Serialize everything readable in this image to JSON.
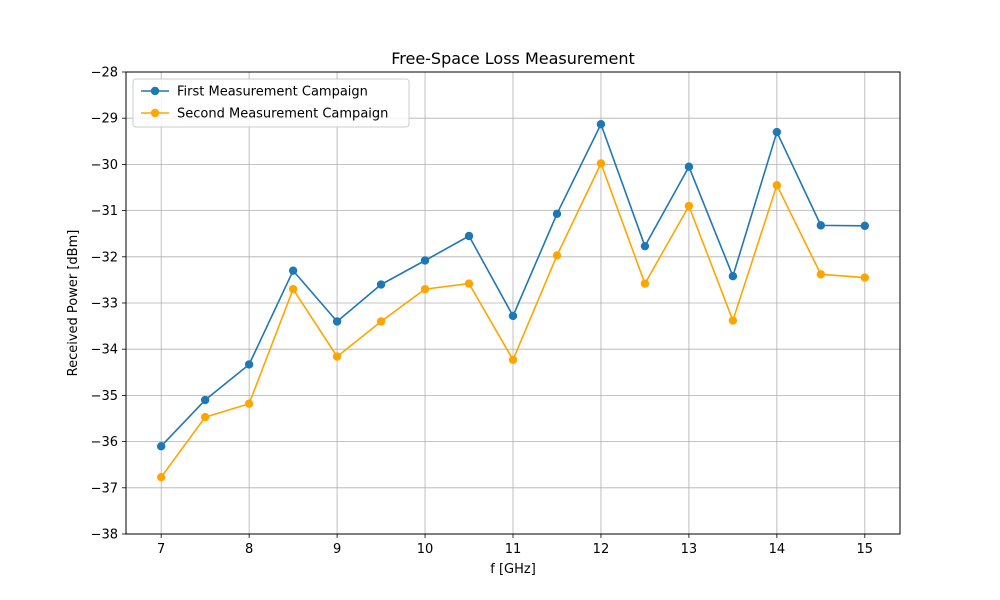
{
  "chart_data": {
    "type": "line",
    "title": "Free-Space Loss Measurement",
    "xlabel": "f [GHz]",
    "ylabel": "Received Power [dBm]",
    "xlim": [
      6.6,
      15.4
    ],
    "ylim": [
      -38,
      -28
    ],
    "xticks": [
      7,
      8,
      9,
      10,
      11,
      12,
      13,
      14,
      15
    ],
    "yticks": [
      -38,
      -37,
      -36,
      -35,
      -34,
      -33,
      -32,
      -31,
      -30,
      -29,
      -28
    ],
    "grid": true,
    "legend_position": "upper-left",
    "x": [
      7,
      7.5,
      8,
      8.5,
      9,
      9.5,
      10,
      10.5,
      11,
      11.5,
      12,
      12.5,
      13,
      13.5,
      14,
      14.5,
      15
    ],
    "series": [
      {
        "name": "First Measurement Campaign",
        "color": "#1f77b4",
        "values": [
          -36.1,
          -35.1,
          -34.33,
          -32.3,
          -33.4,
          -32.6,
          -32.08,
          -31.55,
          -33.28,
          -31.07,
          -29.13,
          -31.77,
          -30.05,
          -32.42,
          -29.3,
          -31.32,
          -31.33
        ]
      },
      {
        "name": "Second Measurement Campaign",
        "color": "#ffa500",
        "values": [
          -36.77,
          -35.47,
          -35.18,
          -32.7,
          -34.16,
          -33.4,
          -32.7,
          -32.58,
          -34.23,
          -31.97,
          -29.98,
          -32.58,
          -30.9,
          -33.38,
          -30.45,
          -32.38,
          -32.45
        ]
      }
    ]
  }
}
